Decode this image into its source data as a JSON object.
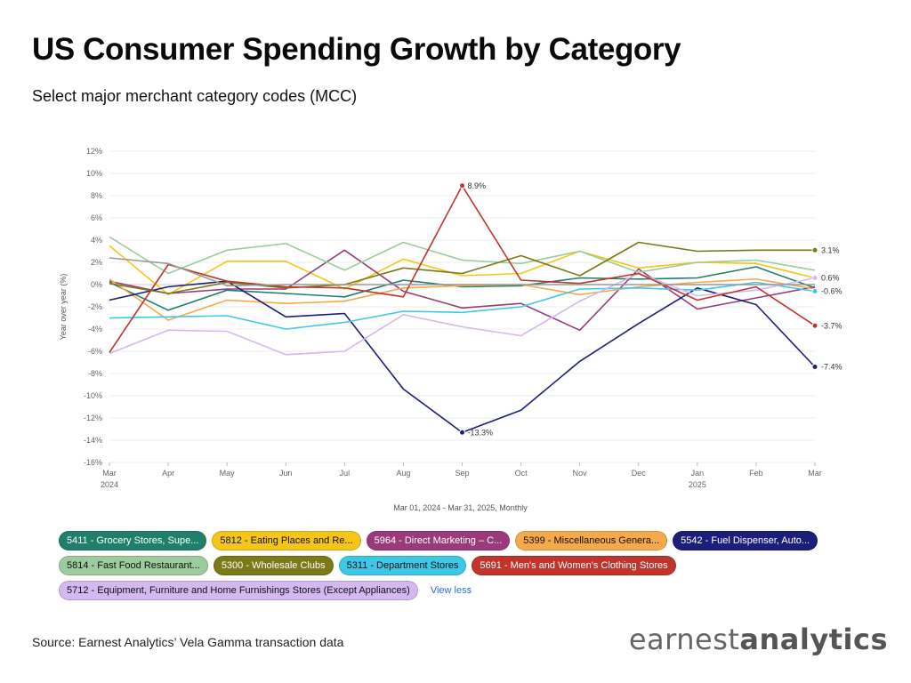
{
  "header": {
    "title": "US Consumer Spending Growth by Category",
    "subtitle": "Select major merchant category codes (MCC)"
  },
  "chart_data": {
    "type": "line",
    "x": [
      "Mar",
      "Apr",
      "May",
      "Jun",
      "Jul",
      "Aug",
      "Sep",
      "Oct",
      "Nov",
      "Dec",
      "Jan",
      "Feb",
      "Mar"
    ],
    "x_year_labels": {
      "0": "2024",
      "10": "2025"
    },
    "xlabel": "Mar 01, 2024 - Mar 31, 2025, Monthly",
    "ylabel": "Year over year (%)",
    "ylim": [
      -16,
      12
    ],
    "yticks": [
      -16,
      -14,
      -12,
      -10,
      -8,
      -6,
      -4,
      -2,
      0,
      2,
      4,
      6,
      8,
      10,
      12
    ],
    "ytick_suffix": "%",
    "grid": true,
    "annotations": [
      {
        "series": 9,
        "index": 6,
        "text": "8.9%"
      },
      {
        "series": 4,
        "index": 6,
        "text": "-13.3%"
      }
    ],
    "series": [
      {
        "name": "5411 - Grocery Stores, Supe...",
        "color": "#1f7f6b",
        "values": [
          0.2,
          -2.3,
          -0.5,
          -0.8,
          -1.1,
          0.4,
          -0.2,
          -0.1,
          0.6,
          0.5,
          0.6,
          1.6,
          -0.3
        ]
      },
      {
        "name": "5812 - Eating Places and Re...",
        "color": "#f5c518",
        "values": [
          3.5,
          -0.9,
          2.1,
          2.1,
          -0.4,
          2.3,
          0.8,
          1.0,
          3.0,
          1.5,
          2.0,
          1.9,
          0.6
        ]
      },
      {
        "name": "5964 - Direct Marketing – C...",
        "color": "#9b3a7a",
        "values": [
          0.3,
          -0.8,
          -0.4,
          -0.4,
          3.1,
          -0.6,
          -2.1,
          -1.7,
          -4.1,
          1.4,
          -2.2,
          -1.2,
          -0.2
        ]
      },
      {
        "name": "5399 - Miscellaneous Genera...",
        "color": "#f5a94a",
        "values": [
          0.5,
          -3.2,
          -1.4,
          -1.7,
          -1.5,
          -0.3,
          -0.1,
          0.0,
          -0.9,
          -0.2,
          0.2,
          0.5,
          -0.4
        ]
      },
      {
        "name": "5542 - Fuel Dispenser, Auto...",
        "color": "#1b1f7a",
        "values": [
          -1.4,
          -0.2,
          0.3,
          -2.9,
          -2.6,
          -9.4,
          -13.3,
          -11.3,
          -6.9,
          -3.5,
          -0.3,
          -1.8,
          -7.4
        ]
      },
      {
        "name": "5814 - Fast Food Restaurant...",
        "color": "#9ccc9c",
        "values": [
          4.3,
          1.0,
          3.1,
          3.7,
          1.3,
          3.8,
          2.2,
          1.9,
          3.0,
          1.1,
          2.0,
          2.2,
          1.3
        ]
      },
      {
        "name": "5300 - Wholesale Clubs",
        "color": "#7a7a18",
        "values": [
          0.1,
          -0.8,
          0.2,
          -0.3,
          0.0,
          1.5,
          1.0,
          2.6,
          0.8,
          3.8,
          3.0,
          3.1,
          3.1
        ]
      },
      {
        "name": "5311 - Department Stores",
        "color": "#3ec8e8",
        "values": [
          -3.0,
          -2.9,
          -2.8,
          -4.0,
          -3.4,
          -2.4,
          -2.5,
          -2.0,
          -0.4,
          -0.3,
          -0.5,
          0.2,
          -0.6
        ]
      },
      {
        "name": "5712 - Equipment, Furniture and Home Furnishings Stores (Except Appliances)",
        "color": "#d4b8f0",
        "values": [
          -6.2,
          -4.1,
          -4.2,
          -6.3,
          -6.0,
          -2.7,
          -3.8,
          -4.6,
          -1.5,
          1.0,
          -1.0,
          -0.5,
          0.6
        ]
      },
      {
        "name": "5691 - Men's and Women's Clothing Stores",
        "color": "#c0342c",
        "values": [
          -6.1,
          1.8,
          0.3,
          -0.2,
          -0.3,
          -1.1,
          8.9,
          0.4,
          0.1,
          1.0,
          -1.4,
          -0.2,
          -3.7
        ]
      },
      {
        "name": "",
        "color": "#999999",
        "values": [
          2.4,
          1.9,
          -0.1,
          0.0,
          0.0,
          0.0,
          0.0,
          0.0,
          0.0,
          0.0,
          0.0,
          0.0,
          0.0
        ]
      }
    ],
    "end_labels": [
      {
        "series": 6,
        "text": "3.1%"
      },
      {
        "series": 8,
        "text": "0.6%"
      },
      {
        "series": 7,
        "text": "-0.6%"
      },
      {
        "series": 9,
        "text": "-3.7%"
      },
      {
        "series": 4,
        "text": "-7.4%"
      }
    ]
  },
  "legend": {
    "rows": [
      [
        {
          "label": "5411 - Grocery Stores, Supe...",
          "bg": "#1f7f6b",
          "fg": "#ffffff"
        },
        {
          "label": "5812 - Eating Places and Re...",
          "bg": "#f5c518",
          "fg": "#111111"
        },
        {
          "label": "5964 - Direct Marketing – C...",
          "bg": "#9b3a7a",
          "fg": "#ffffff"
        },
        {
          "label": "5399 - Miscellaneous Genera...",
          "bg": "#f5a94a",
          "fg": "#111111"
        },
        {
          "label": "5542 - Fuel Dispenser, Auto...",
          "bg": "#1b1f7a",
          "fg": "#ffffff"
        }
      ],
      [
        {
          "label": "5814 - Fast Food Restaurant...",
          "bg": "#9ccc9c",
          "fg": "#111111"
        },
        {
          "label": "5300 - Wholesale Clubs",
          "bg": "#7a7a18",
          "fg": "#ffffff"
        },
        {
          "label": "5311 - Department Stores",
          "bg": "#3ec8e8",
          "fg": "#111111"
        },
        {
          "label": "5691 - Men's and Women's Clothing Stores",
          "bg": "#c0342c",
          "fg": "#ffffff"
        }
      ],
      [
        {
          "label": "5712 - Equipment, Furniture and Home Furnishings Stores (Except Appliances)",
          "bg": "#d4b8f0",
          "fg": "#111111"
        }
      ]
    ],
    "view_less": "View less"
  },
  "footer": {
    "source": "Source: Earnest Analytics’ Vela Gamma transaction data",
    "logo_part1": "earnest",
    "logo_part2": "analytics"
  }
}
